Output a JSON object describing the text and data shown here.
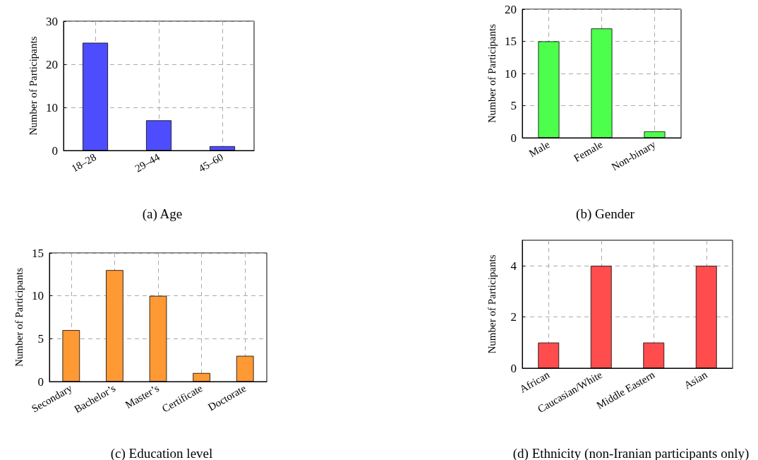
{
  "chart_data": [
    {
      "type": "bar",
      "title": "(a) Age",
      "ylabel": "Number of Participants",
      "categories": [
        "18–28",
        "29–44",
        "45–60"
      ],
      "values": [
        25,
        7,
        1
      ],
      "color": "#4d4dff",
      "ylim": [
        0,
        30
      ],
      "yticks": [
        0,
        10,
        20,
        30
      ],
      "grid": true
    },
    {
      "type": "bar",
      "title": "(b) Gender",
      "ylabel": "Number of Participants",
      "categories": [
        "Male",
        "Female",
        "Non-binary"
      ],
      "values": [
        15,
        17,
        1
      ],
      "color": "#4dff4d",
      "ylim": [
        0,
        20
      ],
      "yticks": [
        0,
        5,
        10,
        15,
        20
      ],
      "grid": true
    },
    {
      "type": "bar",
      "title": "(c) Education level",
      "ylabel": "Number of Participants",
      "categories": [
        "Secondary",
        "Bachelor’s",
        "Master’s",
        "Certificate",
        "Doctorate"
      ],
      "values": [
        6,
        13,
        10,
        1,
        3
      ],
      "color": "#ff9933",
      "ylim": [
        0,
        15
      ],
      "yticks": [
        0,
        5,
        10,
        15
      ],
      "grid": true
    },
    {
      "type": "bar",
      "title": "(d) Ethnicity (non-Iranian participants only)",
      "ylabel": "Number of Participants",
      "categories": [
        "African",
        "Caucasian/White",
        "Middle Eastern",
        "Asian"
      ],
      "values": [
        1,
        4,
        1,
        4
      ],
      "color": "#ff4d4d",
      "ylim": [
        0,
        5
      ],
      "yticks": [
        0,
        2,
        4
      ],
      "grid": true
    }
  ]
}
